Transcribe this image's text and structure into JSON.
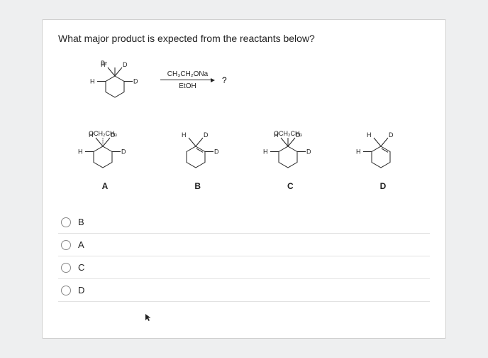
{
  "question": "What major product is expected from the reactants below?",
  "reagent_top": "CH₃CH₂ONa",
  "reagent_bot": "EtOH",
  "product_mark": "?",
  "starting_material": {
    "top_left": "H",
    "top_center": "Br",
    "top_right": "D",
    "left": "H",
    "right": "D",
    "label": ""
  },
  "options": [
    {
      "label": "A",
      "top_left": "H",
      "top_center": "OCH₂CH₃",
      "top_right": "D",
      "left": "H",
      "right": "D",
      "wedge": true,
      "double": false
    },
    {
      "label": "B",
      "top_left": "H",
      "top_center": "",
      "top_right": "D",
      "left": "",
      "right": "D",
      "wedge": false,
      "double": true
    },
    {
      "label": "C",
      "top_left": "H",
      "top_center": "OCH₂CH₃",
      "top_right": "D",
      "left": "H",
      "right": "D",
      "wedge": false,
      "double": false
    },
    {
      "label": "D",
      "top_left": "H",
      "top_center": "",
      "top_right": "D",
      "left": "H",
      "right": "",
      "wedge": false,
      "double": true
    }
  ],
  "radio_order": [
    "B",
    "A",
    "C",
    "D"
  ],
  "cursor_glyph": "▴",
  "colors": {
    "ink": "#222222",
    "card_bg": "#ffffff",
    "page_bg": "#eeeff0",
    "divider": "#e2e2e2"
  }
}
